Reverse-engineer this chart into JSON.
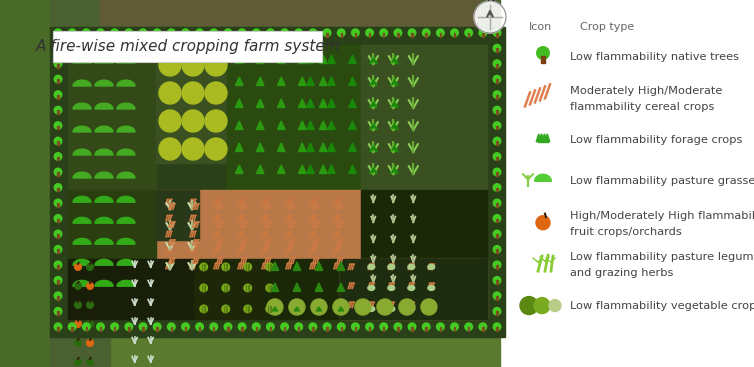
{
  "title": "A fire-wise mixed cropping farm system",
  "title_fontsize": 11,
  "bg_aerial_color": "#6a8a3a",
  "bg_surround_color": "#4a6a28",
  "legend_items": [
    {
      "label": "Low flammability native trees",
      "label2": "",
      "icon": "tree",
      "color": "#44bb22"
    },
    {
      "label": "Moderately High/Moderate",
      "label2": "flammability cereal crops",
      "icon": "cereal",
      "color": "#e8906a"
    },
    {
      "label": "Low flammability forage crops",
      "label2": "",
      "icon": "forage",
      "color": "#33aa22"
    },
    {
      "label": "Low flammability pasture grasses",
      "label2": "",
      "icon": "pasture",
      "color": "#55cc33"
    },
    {
      "label": "High/Moderately High flammability",
      "label2": "fruit crops/orchards",
      "icon": "fruit",
      "color": "#dd6611"
    },
    {
      "label": "Low flammability pasture legume",
      "label2": "and grazing herbs",
      "icon": "legume",
      "color": "#88cc33"
    },
    {
      "label": "Low flammability vegetable crops",
      "label2": "",
      "icon": "veg",
      "color": "#77aa22"
    }
  ],
  "tree_border_color": "#44cc22",
  "tree_border_dark": "#33aa11",
  "farm_bg": "#2a4a1a",
  "zone_colors": {
    "top_left": "#3a5a1a",
    "top_center_left": "#2a4a0a",
    "top_center": "#3a6a1a",
    "top_center_right": "#2a5a1a",
    "top_right": "#3a5a2a",
    "mid_left": "#2a4a0a",
    "mid_center_left": "#2a3a0a",
    "cereal1": "#b87850",
    "cereal2": "#c88858",
    "mid_right_top": "#1a2a0a",
    "mid_right_bot": "#1a3010",
    "bot_left1": "#1a2a08",
    "bot_left2": "#2a3a08",
    "bot_center_left": "#2a3a08",
    "bot_center": "#1a3008",
    "bot_center_right": "#c08858",
    "bot_right": "#2a4018"
  }
}
